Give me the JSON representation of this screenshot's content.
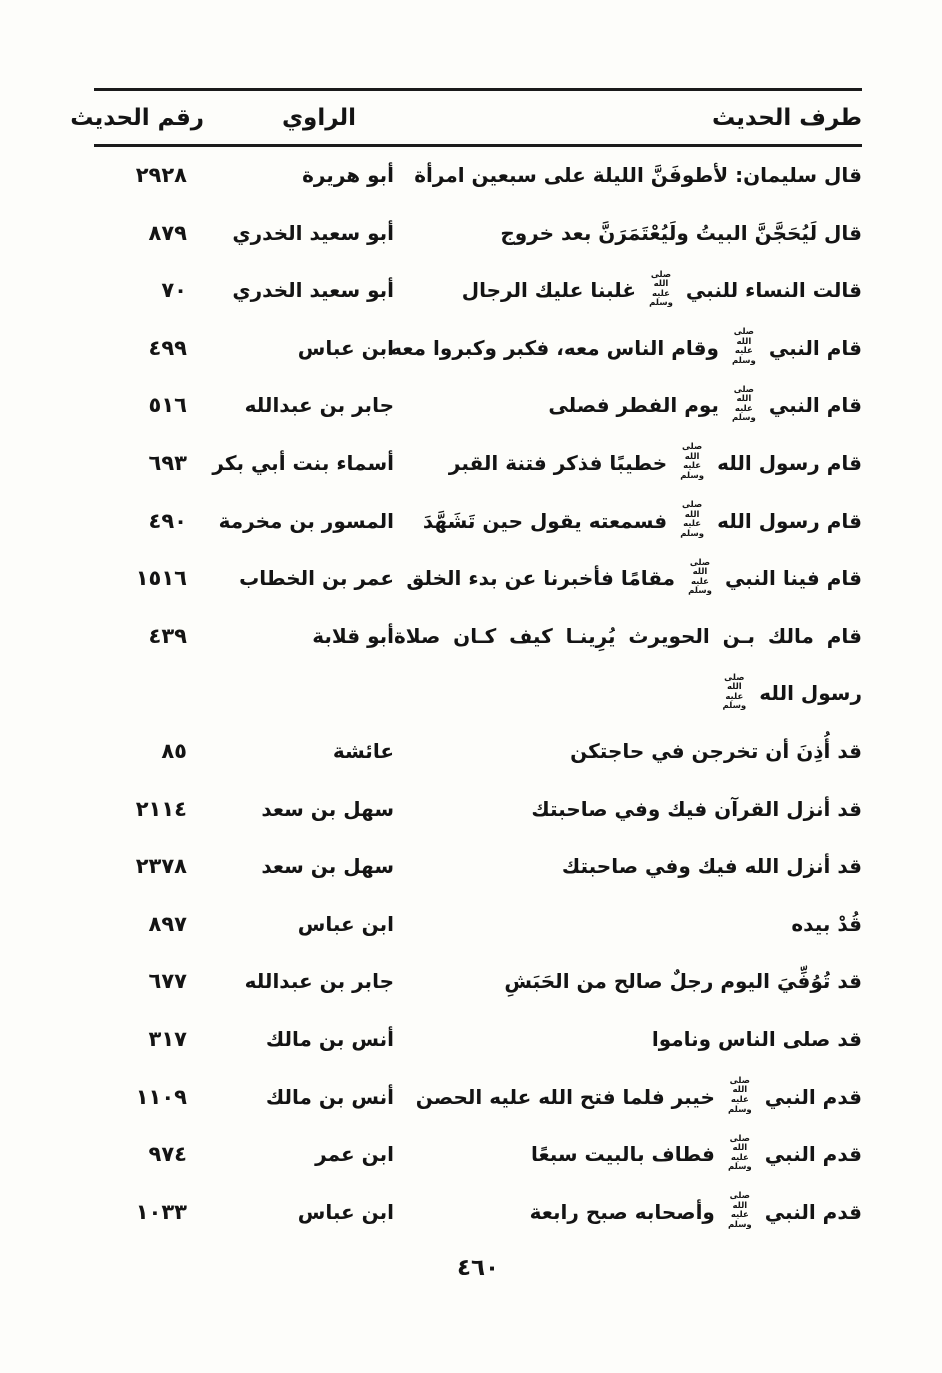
{
  "page": {
    "background": "#fdfdfa",
    "text_color": "#141414",
    "rule_color": "#1b1b1b",
    "page_number": "٤٦٠"
  },
  "honorific_display": "صلى الله عليه وسلم",
  "table": {
    "headers": {
      "hadith": "طرف الحديث",
      "narrator": "الراوي",
      "number": "رقم الحديث"
    },
    "rows": [
      {
        "hadith_lines": [
          "قال سليمان: لأطوفَنَّ الليلة على سبعين امرأة"
        ],
        "narrator": "أبو هريرة",
        "number": "٢٩٢٨"
      },
      {
        "hadith_lines": [
          "قال لَيُحَجَّنَّ البيتُ ولَيُعْتَمَرَنَّ بعد خروج"
        ],
        "narrator": "أبو سعيد الخدري",
        "number": "٨٧٩"
      },
      {
        "hadith_lines": [
          "قالت النساء للنبي ﷺ غلبنا عليك الرجال"
        ],
        "narrator": "أبو سعيد الخدري",
        "number": "٧٠"
      },
      {
        "hadith_lines": [
          "قام النبي ﷺ وقام الناس معه، فكبر وكبروا معه"
        ],
        "narrator": "ابن عباس",
        "number": "٤٩٩"
      },
      {
        "hadith_lines": [
          "قام النبي ﷺ يوم الفطر فصلى"
        ],
        "narrator": "جابر بن عبدالله",
        "number": "٥١٦"
      },
      {
        "hadith_lines": [
          "قام رسول الله ﷺ خطيبًا فذكر فتنة القبر"
        ],
        "narrator": "أسماء بنت أبي بكر",
        "number": "٦٩٣"
      },
      {
        "hadith_lines": [
          "قام رسول الله ﷺ فسمعته يقول حين تَشَهَّدَ"
        ],
        "narrator": "المسور بن مخرمة",
        "number": "٤٩٠"
      },
      {
        "hadith_lines": [
          "قام فينا النبي ﷺ مقامًا فأخبرنا عن بدء الخلق"
        ],
        "narrator": "عمر بن الخطاب",
        "number": "١٥١٦"
      },
      {
        "hadith_lines": [
          "قام مالك بـن الحويرث يُرِينـا كيف كـان صلاة",
          "رسول الله ﷺ"
        ],
        "narrator": "أبو قلابة",
        "number": "٤٣٩"
      },
      {
        "hadith_lines": [
          "قد أُذِنَ أن تخرجن في حاجتكن"
        ],
        "narrator": "عائشة",
        "number": "٨٥"
      },
      {
        "hadith_lines": [
          "قد أنزل القرآن فيك وفي صاحبتك"
        ],
        "narrator": "سهل بن سعد",
        "number": "٢١١٤"
      },
      {
        "hadith_lines": [
          "قد أنزل الله فيك وفي صاحبتك"
        ],
        "narrator": "سهل بن سعد",
        "number": "٢٣٧٨"
      },
      {
        "hadith_lines": [
          "قُدْ بيده"
        ],
        "narrator": "ابن عباس",
        "number": "٨٩٧"
      },
      {
        "hadith_lines": [
          "قد تُوُفِّيَ اليوم رجلٌ صالح من الحَبَشِ"
        ],
        "narrator": "جابر بن عبدالله",
        "number": "٦٧٧"
      },
      {
        "hadith_lines": [
          "قد صلى الناس وناموا"
        ],
        "narrator": "أنس بن مالك",
        "number": "٣١٧"
      },
      {
        "hadith_lines": [
          "قدم النبي ﷺ خيبر فلما فتح الله عليه الحصن"
        ],
        "narrator": "أنس بن مالك",
        "number": "١١٠٩"
      },
      {
        "hadith_lines": [
          "قدم النبي ﷺ فطاف بالبيت سبعًا"
        ],
        "narrator": "ابن عمر",
        "number": "٩٧٤"
      },
      {
        "hadith_lines": [
          "قدم النبي ﷺ وأصحابه صبح رابعة"
        ],
        "narrator": "ابن عباس",
        "number": "١٠٣٣"
      }
    ]
  }
}
